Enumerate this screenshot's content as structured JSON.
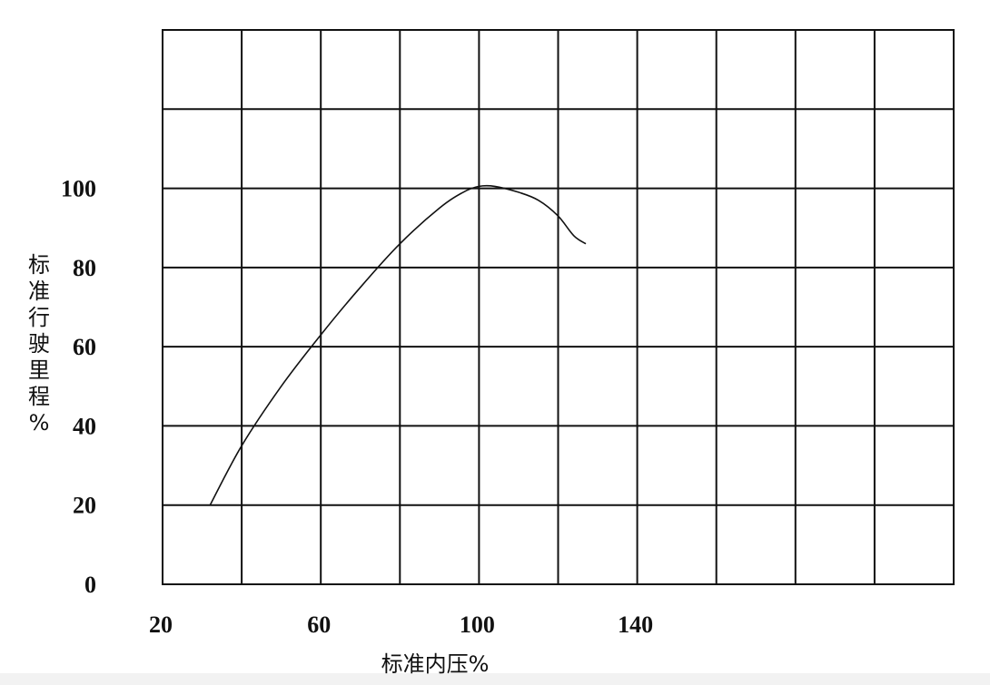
{
  "chart_data": {
    "type": "line",
    "xlabel": "标准内压%",
    "ylabel": "标准行驶里程%",
    "x_ticks": [
      20,
      60,
      100,
      140
    ],
    "y_ticks": [
      0,
      20,
      40,
      60,
      80,
      100
    ],
    "xlim": [
      20,
      220
    ],
    "ylim": [
      0,
      140
    ],
    "x_grid_step": 20,
    "y_grid_step": 20,
    "grid": true,
    "series": [
      {
        "x": [
          32,
          40,
          50,
          60,
          70,
          80,
          90,
          96,
          100,
          104,
          110,
          115,
          120,
          124,
          127
        ],
        "y": [
          20,
          35,
          50,
          63,
          75,
          86,
          95,
          99,
          100.5,
          100.5,
          99,
          97,
          93,
          88,
          86
        ],
        "color": "#111111"
      }
    ]
  }
}
